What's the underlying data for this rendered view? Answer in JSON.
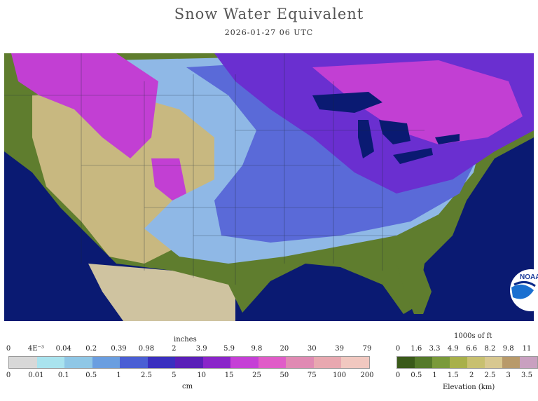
{
  "title": "Snow Water Equivalent",
  "subtitle": "2026-01-27 06 UTC",
  "snow_legend": {
    "top_unit": "inches",
    "top_ticks": [
      "0",
      "4E⁻³",
      "0.04",
      "0.2",
      "0.39",
      "0.98",
      "2",
      "3.9",
      "5.9",
      "9.8",
      "20",
      "30",
      "39",
      "79"
    ],
    "bottom_ticks": [
      "0",
      "0.01",
      "0.1",
      "0.5",
      "1",
      "2.5",
      "5",
      "10",
      "15",
      "25",
      "50",
      "75",
      "100",
      "200"
    ],
    "bottom_unit": "cm",
    "colors": [
      "#d8d8d8",
      "#a9e3ee",
      "#8fc7e6",
      "#6a9ee0",
      "#4a5fd4",
      "#3a2fbf",
      "#5a1fb8",
      "#8a25c9",
      "#c540d6",
      "#e05cc8",
      "#e08ab3",
      "#e8a8b0",
      "#f1c8c0"
    ]
  },
  "elev_legend": {
    "top_unit": "1000s of ft",
    "top_ticks": [
      "0",
      "1.6",
      "3.3",
      "4.9",
      "6.6",
      "8.2",
      "9.8",
      "11"
    ],
    "bottom_ticks": [
      "0",
      "0.5",
      "1",
      "1.5",
      "2",
      "2.5",
      "3",
      "3.5"
    ],
    "bottom_unit": "Elevation (km)",
    "colors": [
      "#3a5a1a",
      "#557a2a",
      "#7a9a3a",
      "#a8b04a",
      "#c8c070",
      "#d8c890",
      "#b89a6a",
      "#c9a0c0"
    ]
  },
  "logo_text": "NOAA",
  "colors": {
    "ocean": "#0a1a72",
    "lowland_green": "#5f7d2e",
    "tan": "#c8b880",
    "snow_blue": "#5a6ad8",
    "snow_violet": "#6a2fd0",
    "snow_magenta": "#c23fd3",
    "mexico_tan": "#cfc3a0"
  }
}
